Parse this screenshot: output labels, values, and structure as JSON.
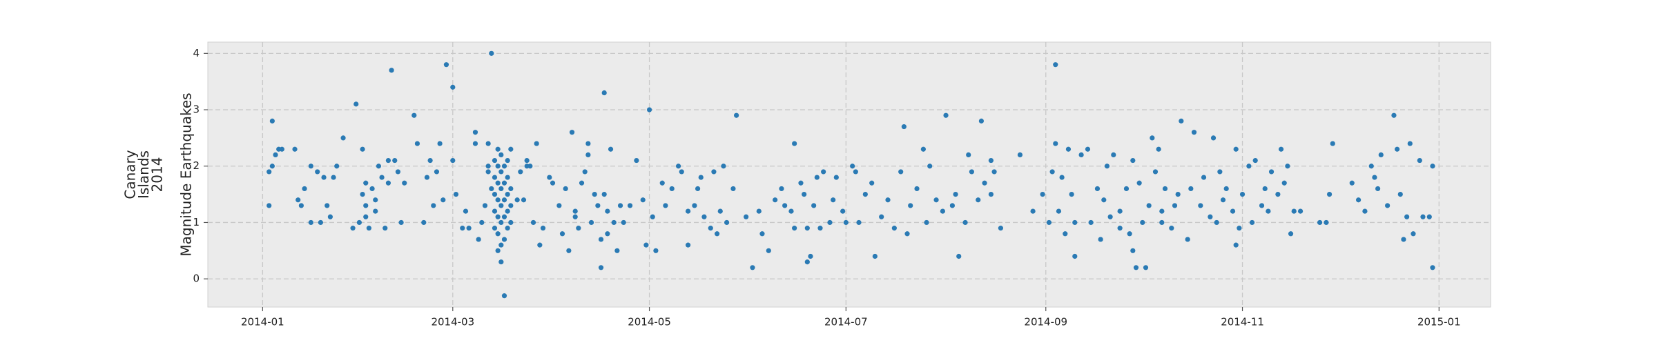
{
  "chart_data": {
    "type": "scatter",
    "title_lines": [
      "Canary",
      "Islands",
      "2014"
    ],
    "ylabel": "Magnitude Earthquakes",
    "color": "#2a7ab4",
    "grid": true,
    "xlim": [
      "2013-12-15",
      "2015-01-17"
    ],
    "xticks": [
      {
        "value": "2014-01-01",
        "label": "2014-01"
      },
      {
        "value": "2014-03-01",
        "label": "2014-03"
      },
      {
        "value": "2014-05-01",
        "label": "2014-05"
      },
      {
        "value": "2014-07-01",
        "label": "2014-07"
      },
      {
        "value": "2014-09-01",
        "label": "2014-09"
      },
      {
        "value": "2014-11-01",
        "label": "2014-11"
      },
      {
        "value": "2015-01-01",
        "label": "2015-01"
      }
    ],
    "ylim": [
      -0.5,
      4.2
    ],
    "yticks": [
      0,
      1,
      2,
      3,
      4
    ],
    "x": [
      "2014-01-03",
      "2014-01-03",
      "2014-01-04",
      "2014-01-04",
      "2014-01-05",
      "2014-01-06",
      "2014-01-07",
      "2014-01-11",
      "2014-01-12",
      "2014-01-13",
      "2014-01-14",
      "2014-01-16",
      "2014-01-16",
      "2014-01-18",
      "2014-01-19",
      "2014-01-20",
      "2014-01-21",
      "2014-01-22",
      "2014-01-23",
      "2014-01-24",
      "2014-01-26",
      "2014-01-29",
      "2014-01-30",
      "2014-01-31",
      "2014-02-01",
      "2014-02-01",
      "2014-02-02",
      "2014-02-02",
      "2014-02-02",
      "2014-02-03",
      "2014-02-04",
      "2014-02-05",
      "2014-02-05",
      "2014-02-06",
      "2014-02-07",
      "2014-02-08",
      "2014-02-09",
      "2014-02-09",
      "2014-02-10",
      "2014-02-11",
      "2014-02-12",
      "2014-02-13",
      "2014-02-14",
      "2014-02-17",
      "2014-02-18",
      "2014-02-20",
      "2014-02-21",
      "2014-02-22",
      "2014-02-23",
      "2014-02-24",
      "2014-02-25",
      "2014-02-26",
      "2014-02-27",
      "2014-03-01",
      "2014-03-01",
      "2014-03-02",
      "2014-03-04",
      "2014-03-05",
      "2014-03-06",
      "2014-03-08",
      "2014-03-08",
      "2014-03-09",
      "2014-03-10",
      "2014-03-11",
      "2014-03-12",
      "2014-03-12",
      "2014-03-12",
      "2014-03-13",
      "2014-03-13",
      "2014-03-14",
      "2014-03-14",
      "2014-03-14",
      "2014-03-14",
      "2014-03-14",
      "2014-03-15",
      "2014-03-15",
      "2014-03-15",
      "2014-03-15",
      "2014-03-15",
      "2014-03-15",
      "2014-03-15",
      "2014-03-16",
      "2014-03-16",
      "2014-03-16",
      "2014-03-16",
      "2014-03-16",
      "2014-03-16",
      "2014-03-16",
      "2014-03-17",
      "2014-03-17",
      "2014-03-17",
      "2014-03-17",
      "2014-03-17",
      "2014-03-17",
      "2014-03-18",
      "2014-03-18",
      "2014-03-18",
      "2014-03-18",
      "2014-03-18",
      "2014-03-19",
      "2014-03-19",
      "2014-03-19",
      "2014-03-19",
      "2014-03-21",
      "2014-03-22",
      "2014-03-23",
      "2014-03-24",
      "2014-03-24",
      "2014-03-25",
      "2014-03-26",
      "2014-03-27",
      "2014-03-28",
      "2014-03-29",
      "2014-03-31",
      "2014-04-01",
      "2014-04-03",
      "2014-04-04",
      "2014-04-05",
      "2014-04-06",
      "2014-04-07",
      "2014-04-08",
      "2014-04-08",
      "2014-04-09",
      "2014-04-10",
      "2014-04-11",
      "2014-04-12",
      "2014-04-12",
      "2014-04-13",
      "2014-04-14",
      "2014-04-15",
      "2014-04-16",
      "2014-04-16",
      "2014-04-17",
      "2014-04-17",
      "2014-04-18",
      "2014-04-18",
      "2014-04-19",
      "2014-04-20",
      "2014-04-21",
      "2014-04-22",
      "2014-04-23",
      "2014-04-25",
      "2014-04-27",
      "2014-04-29",
      "2014-04-30",
      "2014-05-01",
      "2014-05-02",
      "2014-05-03",
      "2014-05-05",
      "2014-05-06",
      "2014-05-08",
      "2014-05-10",
      "2014-05-11",
      "2014-05-13",
      "2014-05-13",
      "2014-05-15",
      "2014-05-16",
      "2014-05-17",
      "2014-05-18",
      "2014-05-20",
      "2014-05-21",
      "2014-05-22",
      "2014-05-23",
      "2014-05-24",
      "2014-05-25",
      "2014-05-27",
      "2014-05-28",
      "2014-05-31",
      "2014-06-02",
      "2014-06-04",
      "2014-06-05",
      "2014-06-07",
      "2014-06-09",
      "2014-06-11",
      "2014-06-12",
      "2014-06-14",
      "2014-06-15",
      "2014-06-15",
      "2014-06-17",
      "2014-06-18",
      "2014-06-19",
      "2014-06-19",
      "2014-06-20",
      "2014-06-21",
      "2014-06-22",
      "2014-06-23",
      "2014-06-24",
      "2014-06-26",
      "2014-06-27",
      "2014-06-28",
      "2014-06-30",
      "2014-07-01",
      "2014-07-03",
      "2014-07-04",
      "2014-07-05",
      "2014-07-07",
      "2014-07-09",
      "2014-07-10",
      "2014-07-12",
      "2014-07-14",
      "2014-07-16",
      "2014-07-18",
      "2014-07-19",
      "2014-07-20",
      "2014-07-21",
      "2014-07-23",
      "2014-07-25",
      "2014-07-26",
      "2014-07-27",
      "2014-07-29",
      "2014-07-31",
      "2014-08-01",
      "2014-08-03",
      "2014-08-04",
      "2014-08-05",
      "2014-08-07",
      "2014-08-08",
      "2014-08-09",
      "2014-08-11",
      "2014-08-12",
      "2014-08-13",
      "2014-08-15",
      "2014-08-15",
      "2014-08-16",
      "2014-08-18",
      "2014-08-24",
      "2014-08-28",
      "2014-08-31",
      "2014-09-02",
      "2014-09-03",
      "2014-09-04",
      "2014-09-04",
      "2014-09-05",
      "2014-09-06",
      "2014-09-07",
      "2014-09-08",
      "2014-09-09",
      "2014-09-10",
      "2014-09-10",
      "2014-09-12",
      "2014-09-14",
      "2014-09-15",
      "2014-09-17",
      "2014-09-18",
      "2014-09-19",
      "2014-09-20",
      "2014-09-21",
      "2014-09-22",
      "2014-09-24",
      "2014-09-24",
      "2014-09-26",
      "2014-09-27",
      "2014-09-28",
      "2014-09-28",
      "2014-09-29",
      "2014-09-30",
      "2014-10-01",
      "2014-10-02",
      "2014-10-03",
      "2014-10-04",
      "2014-10-05",
      "2014-10-06",
      "2014-10-07",
      "2014-10-07",
      "2014-10-08",
      "2014-10-10",
      "2014-10-11",
      "2014-10-12",
      "2014-10-13",
      "2014-10-15",
      "2014-10-16",
      "2014-10-17",
      "2014-10-19",
      "2014-10-20",
      "2014-10-22",
      "2014-10-23",
      "2014-10-24",
      "2014-10-25",
      "2014-10-26",
      "2014-10-27",
      "2014-10-29",
      "2014-10-30",
      "2014-10-30",
      "2014-10-31",
      "2014-11-01",
      "2014-11-03",
      "2014-11-04",
      "2014-11-05",
      "2014-11-07",
      "2014-11-08",
      "2014-11-09",
      "2014-11-10",
      "2014-11-12",
      "2014-11-13",
      "2014-11-14",
      "2014-11-15",
      "2014-11-16",
      "2014-11-17",
      "2014-11-19",
      "2014-11-25",
      "2014-11-27",
      "2014-11-28",
      "2014-11-29",
      "2014-12-05",
      "2014-12-07",
      "2014-12-09",
      "2014-12-11",
      "2014-12-12",
      "2014-12-13",
      "2014-12-14",
      "2014-12-16",
      "2014-12-18",
      "2014-12-19",
      "2014-12-20",
      "2014-12-21",
      "2014-12-22",
      "2014-12-23",
      "2014-12-24",
      "2014-12-26",
      "2014-12-27",
      "2014-12-29",
      "2014-12-30",
      "2014-12-30"
    ],
    "values": [
      1.9,
      1.3,
      2.0,
      2.8,
      2.2,
      2.3,
      2.3,
      2.3,
      1.4,
      1.3,
      1.6,
      1.0,
      2.0,
      1.9,
      1.0,
      1.8,
      1.3,
      1.1,
      1.8,
      2.0,
      2.5,
      0.9,
      3.1,
      1.0,
      1.5,
      2.3,
      1.1,
      1.7,
      1.3,
      0.9,
      1.6,
      1.4,
      1.2,
      2.0,
      1.8,
      0.9,
      1.7,
      2.1,
      3.7,
      2.1,
      1.9,
      1.0,
      1.7,
      2.9,
      2.4,
      1.0,
      1.8,
      2.1,
      1.3,
      1.9,
      2.4,
      1.4,
      3.8,
      2.1,
      3.4,
      1.5,
      0.9,
      1.2,
      0.9,
      2.4,
      2.6,
      0.7,
      1.0,
      1.3,
      2.0,
      1.9,
      2.4,
      1.6,
      4.0,
      0.9,
      1.2,
      1.5,
      1.8,
      2.1,
      0.5,
      0.8,
      1.1,
      1.4,
      1.7,
      2.0,
      2.3,
      0.3,
      0.6,
      1.0,
      1.3,
      1.6,
      1.9,
      2.2,
      -0.3,
      0.7,
      1.1,
      1.4,
      1.7,
      2.0,
      0.9,
      1.2,
      1.5,
      1.8,
      2.1,
      1.0,
      1.3,
      1.6,
      2.3,
      1.4,
      1.9,
      1.4,
      2.0,
      2.1,
      2.0,
      1.0,
      2.4,
      0.6,
      0.9,
      1.8,
      1.7,
      1.3,
      0.8,
      1.6,
      0.5,
      2.6,
      1.2,
      1.1,
      0.9,
      1.7,
      1.9,
      2.4,
      2.2,
      1.0,
      1.5,
      1.3,
      0.7,
      0.2,
      1.5,
      3.3,
      0.8,
      1.2,
      2.3,
      1.0,
      0.5,
      1.3,
      1.0,
      1.3,
      2.1,
      1.4,
      0.6,
      3.0,
      1.1,
      0.5,
      1.7,
      1.3,
      1.6,
      2.0,
      1.9,
      1.2,
      0.6,
      1.3,
      1.6,
      1.8,
      1.1,
      0.9,
      1.9,
      0.8,
      1.2,
      2.0,
      1.0,
      1.6,
      2.9,
      1.1,
      0.2,
      1.2,
      0.8,
      0.5,
      1.4,
      1.6,
      1.3,
      1.2,
      0.9,
      2.4,
      1.7,
      1.5,
      0.3,
      0.9,
      0.4,
      1.3,
      1.8,
      0.9,
      1.9,
      1.0,
      1.4,
      1.8,
      1.2,
      1.0,
      2.0,
      1.9,
      1.0,
      1.5,
      1.7,
      0.4,
      1.1,
      1.4,
      0.9,
      1.9,
      2.7,
      0.8,
      1.3,
      1.6,
      2.3,
      1.0,
      2.0,
      1.4,
      1.2,
      2.9,
      1.3,
      1.5,
      0.4,
      1.0,
      2.2,
      1.9,
      1.4,
      2.8,
      1.7,
      1.5,
      2.1,
      1.9,
      0.9,
      2.2,
      1.2,
      1.5,
      1.0,
      1.9,
      3.8,
      2.4,
      1.2,
      1.8,
      0.8,
      2.3,
      1.5,
      1.0,
      0.4,
      2.2,
      2.3,
      1.0,
      1.6,
      0.7,
      1.4,
      2.0,
      1.1,
      2.2,
      1.2,
      0.9,
      1.6,
      0.8,
      2.1,
      0.5,
      0.2,
      1.7,
      1.0,
      0.2,
      1.3,
      2.5,
      1.9,
      2.3,
      1.2,
      1.0,
      1.6,
      0.9,
      1.3,
      1.5,
      2.8,
      0.7,
      1.6,
      2.6,
      1.3,
      1.8,
      1.1,
      2.5,
      1.0,
      1.9,
      1.4,
      1.6,
      1.2,
      2.3,
      0.6,
      0.9,
      1.5,
      2.0,
      1.0,
      2.1,
      1.3,
      1.6,
      1.2,
      1.9,
      1.5,
      2.3,
      1.7,
      2.0,
      0.8,
      1.2,
      1.2,
      1.0,
      1.0,
      1.5,
      2.4,
      1.7,
      1.4,
      1.2,
      2.0,
      1.8,
      1.6,
      2.2,
      1.3,
      2.9,
      2.3,
      1.5,
      0.7,
      1.1,
      2.4,
      0.8,
      2.1,
      1.1,
      1.1,
      2.0,
      0.2
    ]
  }
}
